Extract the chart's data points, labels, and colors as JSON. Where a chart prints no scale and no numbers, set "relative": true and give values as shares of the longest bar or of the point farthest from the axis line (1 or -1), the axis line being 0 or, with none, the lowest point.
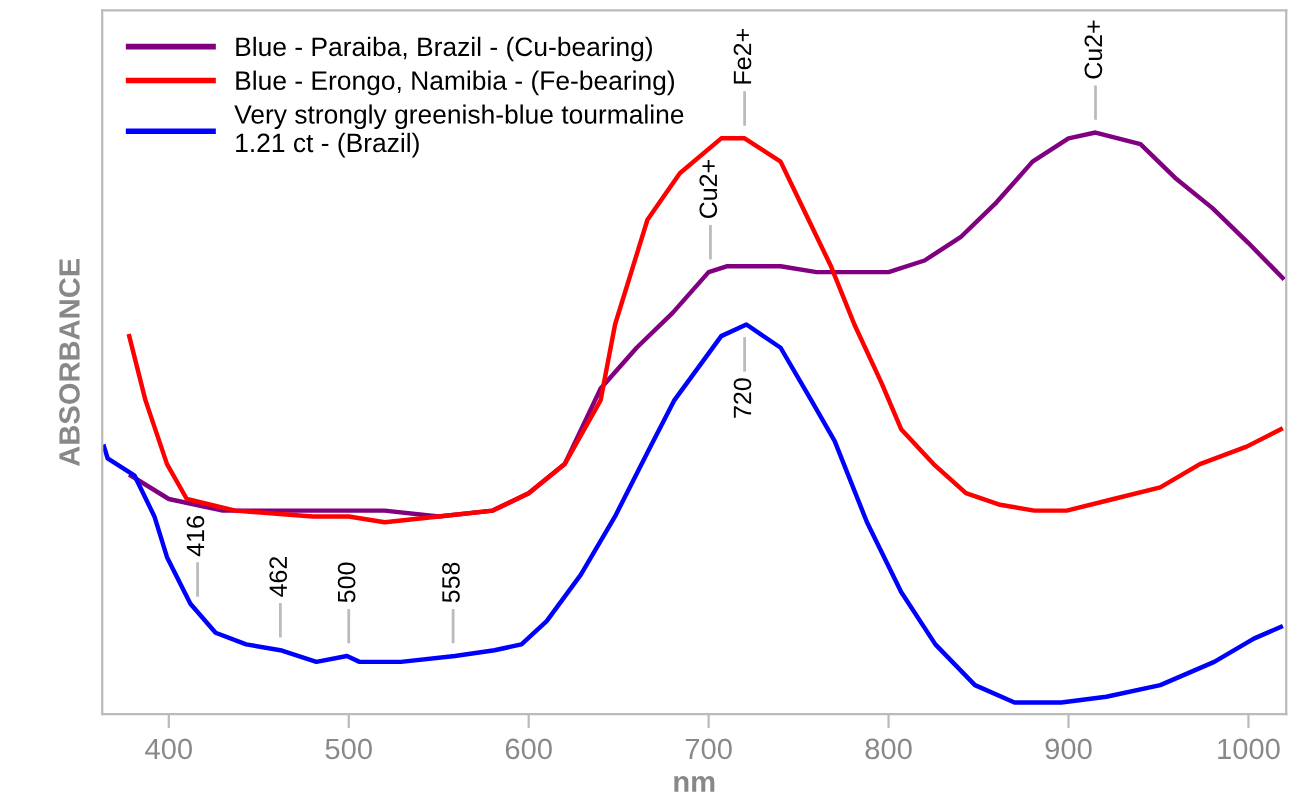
{
  "chart_data": {
    "type": "line",
    "relative": true,
    "xlabel": "nm",
    "ylabel": "ABSORBANCE",
    "xlim": [
      363,
      1021
    ],
    "xticks": [
      400,
      500,
      600,
      700,
      800,
      900,
      1000
    ],
    "legend": "top left",
    "grid": false,
    "marker": "none",
    "line_style": "solid",
    "series": [
      {
        "name": "Blue - Paraiba, Brazil - (Cu-bearing)",
        "color": "#800080",
        "x": [
          379,
          400,
          430,
          460,
          500,
          520,
          550,
          580,
          600,
          620,
          640,
          660,
          680,
          700,
          710,
          720,
          740,
          760,
          780,
          800,
          820,
          840,
          860,
          880,
          900,
          915,
          940,
          960,
          980,
          1000,
          1019
        ],
        "values": [
          0.41,
          0.37,
          0.35,
          0.35,
          0.35,
          0.35,
          0.34,
          0.35,
          0.38,
          0.43,
          0.56,
          0.63,
          0.69,
          0.76,
          0.77,
          0.77,
          0.77,
          0.76,
          0.76,
          0.76,
          0.78,
          0.82,
          0.88,
          0.95,
          0.99,
          1.0,
          0.98,
          0.92,
          0.87,
          0.81,
          0.75
        ]
      },
      {
        "name": "Blue - Erongo, Namibia - (Fe-bearing)",
        "color": "#ff0000",
        "x": [
          378,
          387,
          399,
          410,
          437,
          480,
          500,
          520,
          550,
          580,
          600,
          620,
          640,
          648,
          666,
          684,
          707,
          720,
          740,
          754,
          768,
          781,
          796,
          807,
          825,
          843,
          862,
          881,
          899,
          925,
          951,
          973,
          999,
          1018
        ],
        "values": [
          0.65,
          0.54,
          0.43,
          0.37,
          0.35,
          0.34,
          0.34,
          0.33,
          0.34,
          0.35,
          0.38,
          0.43,
          0.54,
          0.67,
          0.85,
          0.93,
          0.99,
          0.99,
          0.95,
          0.86,
          0.77,
          0.67,
          0.57,
          0.49,
          0.43,
          0.38,
          0.36,
          0.35,
          0.35,
          0.37,
          0.39,
          0.43,
          0.46,
          0.49
        ]
      },
      {
        "name": "Very strongly greenish-blue tourmaline\n1.21 ct - (Brazil)",
        "color": "#0000ff",
        "x": [
          364,
          366,
          381,
          392,
          399,
          412,
          426,
          443,
          462,
          482,
          499,
          506,
          529,
          559,
          581,
          596,
          610,
          629,
          648,
          666,
          681,
          707,
          721,
          740,
          757,
          770,
          788,
          807,
          826,
          848,
          870,
          896,
          921,
          951,
          981,
          1003,
          1018
        ],
        "values": [
          0.46,
          0.44,
          0.41,
          0.34,
          0.27,
          0.19,
          0.14,
          0.12,
          0.11,
          0.09,
          0.1,
          0.09,
          0.09,
          0.1,
          0.11,
          0.12,
          0.16,
          0.24,
          0.34,
          0.45,
          0.54,
          0.65,
          0.67,
          0.63,
          0.54,
          0.47,
          0.33,
          0.21,
          0.12,
          0.05,
          0.02,
          0.02,
          0.03,
          0.05,
          0.09,
          0.13,
          0.15
        ]
      }
    ],
    "annotations": [
      {
        "text": "416",
        "x": 416,
        "y": 0.18
      },
      {
        "text": "462",
        "x": 462,
        "y": 0.11
      },
      {
        "text": "500",
        "x": 500,
        "y": 0.1
      },
      {
        "text": "558",
        "x": 558,
        "y": 0.1
      },
      {
        "text": "720",
        "x": 720,
        "y": 0.67
      },
      {
        "text": "Cu2+",
        "x": 701,
        "y": 0.76
      },
      {
        "text": "Fe2+",
        "x": 720,
        "y": 0.99
      },
      {
        "text": "Cu2+",
        "x": 915,
        "y": 1.0
      }
    ]
  }
}
